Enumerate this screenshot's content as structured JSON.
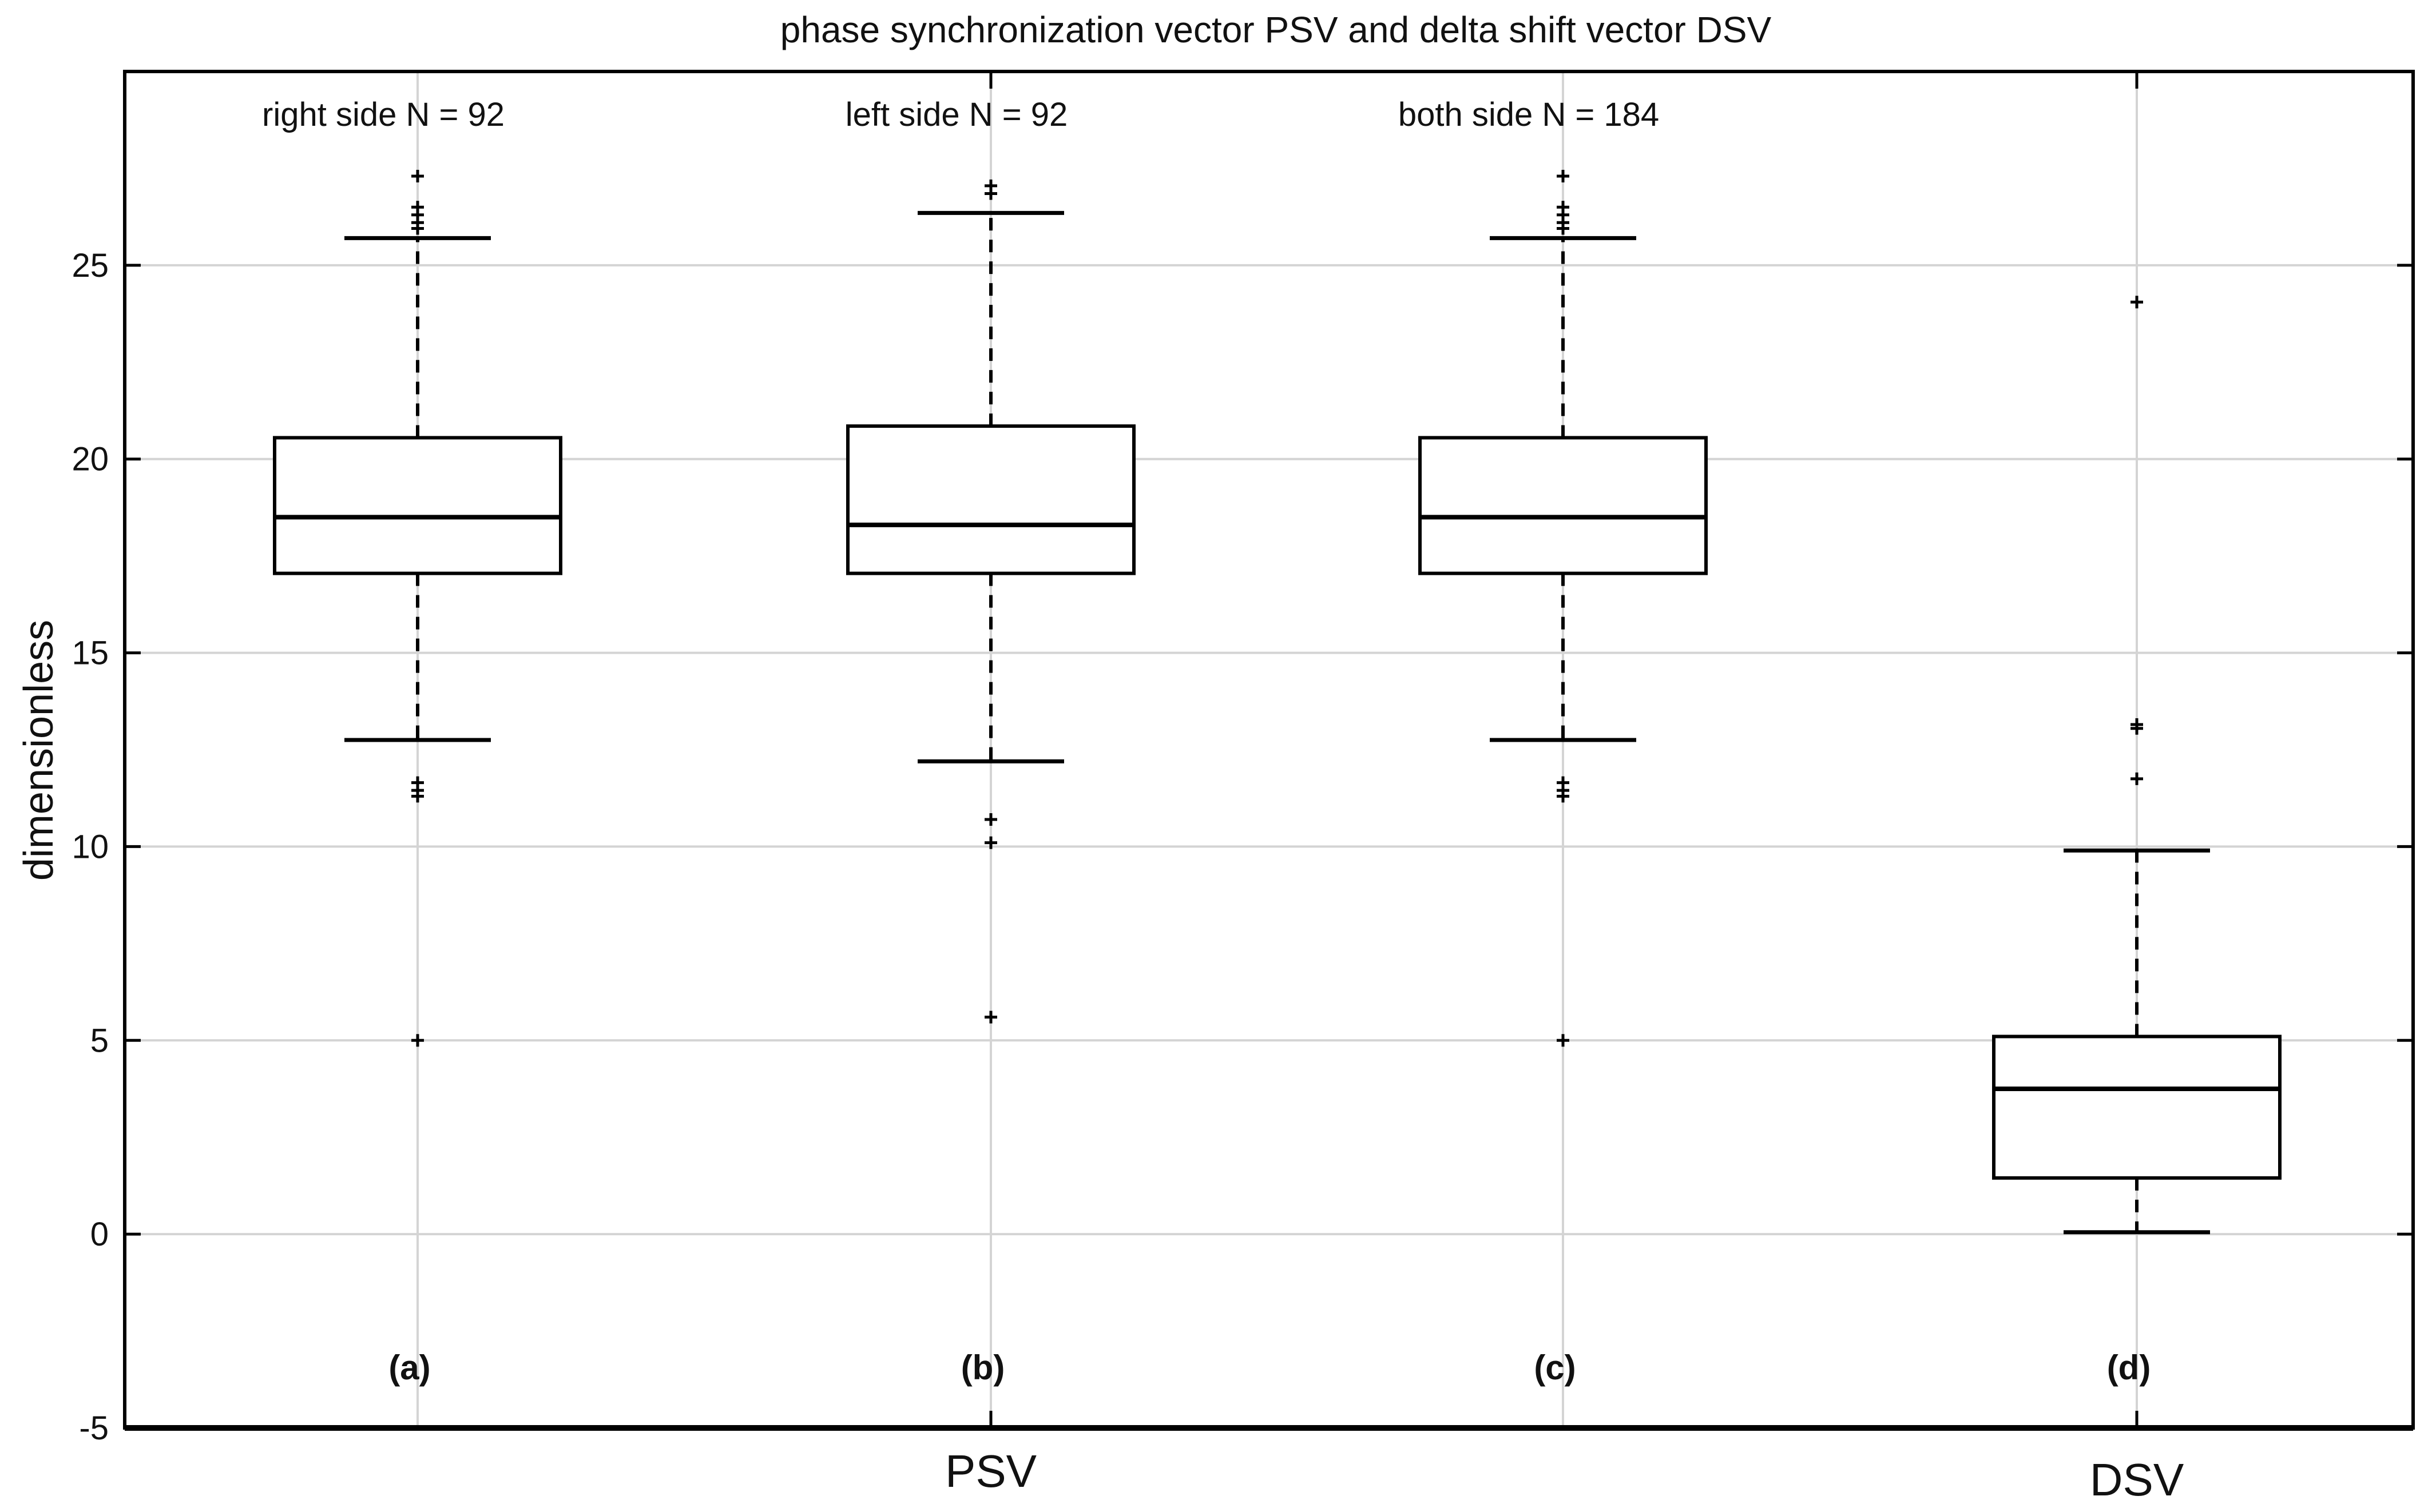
{
  "chart_data": {
    "type": "box",
    "title": "phase synchronization vector PSV and delta shift vector DSV",
    "ylabel": "dimensionless",
    "xlabel": "",
    "ylim": [
      -5,
      30
    ],
    "yticks": [
      -5,
      0,
      5,
      10,
      15,
      20,
      25
    ],
    "grid": true,
    "x_categories": [
      {
        "label": "PSV",
        "position": 2
      },
      {
        "label": "DSV",
        "position": 4
      }
    ],
    "boxes": [
      {
        "id": "a",
        "panel_label": "(a)",
        "group_label": "right side N = 92",
        "position": 1,
        "q1": 17.05,
        "median": 18.5,
        "q3": 20.55,
        "whisker_low": 12.75,
        "whisker_high": 25.7,
        "outliers": [
          11.3,
          11.45,
          11.65,
          5.0,
          25.95,
          26.1,
          26.3,
          26.5,
          27.3
        ]
      },
      {
        "id": "b",
        "panel_label": "(b)",
        "group_label": "left side N = 92",
        "position": 2,
        "q1": 17.05,
        "median": 18.3,
        "q3": 20.85,
        "whisker_low": 12.2,
        "whisker_high": 26.35,
        "outliers": [
          10.7,
          10.1,
          5.6,
          26.85,
          27.05
        ]
      },
      {
        "id": "c",
        "panel_label": "(c)",
        "group_label": "both side N = 184",
        "position": 3,
        "q1": 17.05,
        "median": 18.5,
        "q3": 20.55,
        "whisker_low": 12.75,
        "whisker_high": 25.7,
        "outliers": [
          11.3,
          11.45,
          11.65,
          5.0,
          25.95,
          26.1,
          26.3,
          26.5,
          27.3
        ]
      },
      {
        "id": "d",
        "panel_label": "(d)",
        "group_label": "",
        "position": 4,
        "q1": 1.45,
        "median": 3.75,
        "q3": 5.1,
        "whisker_low": 0.05,
        "whisker_high": 9.9,
        "outliers": [
          11.75,
          13.05,
          13.15,
          24.05
        ]
      }
    ]
  }
}
